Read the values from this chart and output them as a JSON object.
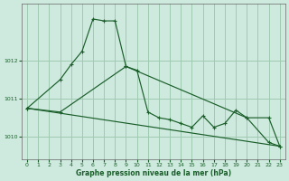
{
  "title": "Graphe pression niveau de la mer (hPa)",
  "bg_color": "#ceeade",
  "grid_color": "#9fc9b0",
  "line_color": "#1a5e2a",
  "marker_color": "#1a5e2a",
  "xlim": [
    -0.5,
    23.5
  ],
  "ylim": [
    1009.4,
    1013.5
  ],
  "yticks": [
    1010,
    1011,
    1012
  ],
  "ytick_labels": [
    "1010",
    "1011",
    "1012"
  ],
  "xticks": [
    0,
    1,
    2,
    3,
    4,
    5,
    6,
    7,
    8,
    9,
    10,
    11,
    12,
    13,
    14,
    15,
    16,
    17,
    18,
    19,
    20,
    21,
    22,
    23
  ],
  "series1_x": [
    0,
    3,
    4,
    5,
    6,
    7,
    8,
    9,
    10,
    11,
    12,
    13,
    14,
    15,
    16,
    17,
    18,
    19,
    20,
    22,
    23
  ],
  "series1_y": [
    1010.75,
    1011.5,
    1011.9,
    1012.25,
    1013.1,
    1013.05,
    1013.05,
    1011.85,
    1011.75,
    1010.65,
    1010.5,
    1010.45,
    1010.35,
    1010.25,
    1010.55,
    1010.25,
    1010.35,
    1010.7,
    1010.5,
    1009.85,
    1009.75
  ],
  "series2_x": [
    0,
    3,
    9,
    20,
    22,
    23
  ],
  "series2_y": [
    1010.75,
    1010.65,
    1011.85,
    1010.5,
    1010.5,
    1009.75
  ],
  "series3_x": [
    0,
    23
  ],
  "series3_y": [
    1010.75,
    1009.75
  ]
}
